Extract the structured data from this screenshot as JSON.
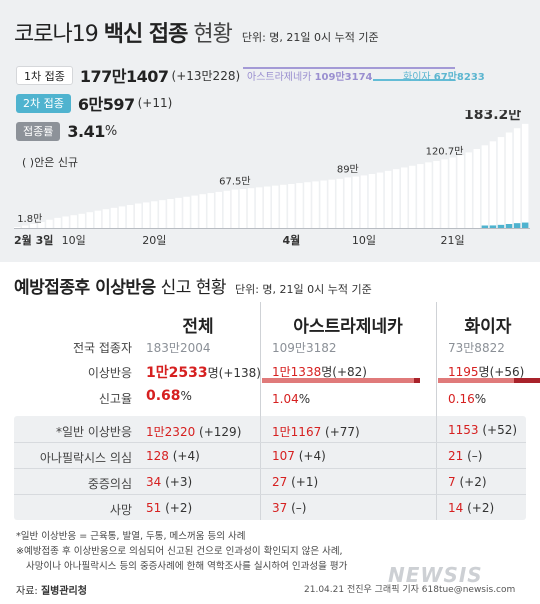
{
  "header": {
    "title_a": "코로나19",
    "title_b": "백신 접종",
    "title_c": "현황",
    "unit": "단위: 명, 21일 0시 누적 기준"
  },
  "stats": {
    "dose1_label": "1차 접종",
    "dose1_value": "177만1407",
    "dose1_new": "(+13만228)",
    "dose2_label": "2차 접종",
    "dose2_value": "6만597",
    "dose2_new": "(+11)",
    "rate_label": "접종률",
    "rate_value": "3.41",
    "rate_unit": "%",
    "paren_note": "( )안은 신규"
  },
  "vaccine_split": {
    "az_label": "아스트라제네카",
    "az_value": "109만3174",
    "pf_label": "화이자",
    "pf_value": "67만8233"
  },
  "chart_data": {
    "type": "bar",
    "title": "코로나19 백신 접종 현황",
    "series": [
      {
        "name": "1차 접종",
        "unit": "만명",
        "values": [
          1.8,
          4.3,
          7.2,
          10.5,
          14.5,
          17.8,
          20.3,
          22.5,
          25.0,
          27.8,
          30.5,
          33.0,
          35.5,
          38.0,
          40.5,
          43.0,
          45.0,
          47.0,
          49.0,
          51.0,
          53.0,
          55.0,
          57.0,
          59.5,
          61.5,
          63.5,
          65.5,
          67.5,
          68.5,
          70.0,
          71.5,
          73.0,
          74.5,
          76.0,
          77.5,
          79.0,
          80.5,
          82.0,
          83.5,
          85.0,
          86.5,
          89.0,
          90.5,
          92.5,
          95.0,
          97.5,
          100.5,
          103.5,
          106.5,
          109.5,
          112.5,
          115.5,
          118.0,
          120.7,
          124.0,
          128.0,
          133.0,
          139.0,
          145.5,
          152.5,
          160.0,
          168.0,
          175.5,
          183.2
        ]
      },
      {
        "name": "2차 접종",
        "unit": "만명",
        "values": [
          0,
          0,
          0,
          0,
          0,
          0,
          0,
          0,
          0,
          0,
          0,
          0,
          0,
          0,
          0,
          0,
          0,
          0,
          0,
          0,
          0,
          0,
          0,
          0,
          0,
          0,
          0,
          0,
          0,
          0,
          0,
          0,
          0,
          0,
          0,
          0,
          0,
          0,
          0,
          0,
          0,
          0,
          0,
          0,
          0,
          0,
          0,
          0,
          0,
          0,
          0,
          0,
          0,
          0,
          0,
          0,
          0,
          0,
          0.3,
          1.0,
          2.0,
          3.5,
          5.0,
          6.06
        ]
      }
    ],
    "data_labels": [
      {
        "index": 0,
        "text": "1.8만"
      },
      {
        "index": 27,
        "text": "67.5만"
      },
      {
        "index": 41,
        "text": "89만"
      },
      {
        "index": 53,
        "text": "120.7만"
      },
      {
        "index": 63,
        "text": "183.2만"
      }
    ],
    "x_ticks": [
      {
        "index": 0,
        "text": "2월 3일",
        "bold": true
      },
      {
        "index": 7,
        "text": "10일",
        "bold": false
      },
      {
        "index": 17,
        "text": "20일",
        "bold": false
      },
      {
        "index": 34,
        "text": "4월",
        "bold": true
      },
      {
        "index": 43,
        "text": "10일",
        "bold": false
      },
      {
        "index": 54,
        "text": "21일",
        "bold": false
      }
    ],
    "ylim": [
      0,
      190
    ],
    "colors": {
      "dose1": "#ffffff",
      "dose2": "#4fb3cf"
    }
  },
  "section2": {
    "title_a": "예방접종후 이상반응",
    "title_b": "신고 현황",
    "unit": "단위: 명, 21일 0시 누적 기준",
    "columns": [
      "전체",
      "아스트라제네카",
      "화이자"
    ],
    "rows": {
      "vaccinated": {
        "label": "전국 접종자",
        "total": "183만2004",
        "az": "109만3182",
        "pf": "73만8822"
      },
      "adverse": {
        "label": "이상반응",
        "total_num": "1만2533",
        "total_unit": "명",
        "total_new": "(+138)",
        "az_num": "1만1338",
        "az_unit": "명",
        "az_new": "(+82)",
        "pf_num": "1195",
        "pf_unit": "명",
        "pf_new": "(+56)"
      },
      "report_rate": {
        "label": "신고율",
        "total": "0.68",
        "az": "1.04",
        "pf": "0.16",
        "unit": "%"
      },
      "general": {
        "label": "*일반 이상반응",
        "total": "1만2320",
        "total_new": "(+129)",
        "az": "1만1167",
        "az_new": "(+77)",
        "pf": "1153",
        "pf_new": "(+52)"
      },
      "anaphylaxis": {
        "label": "아나필락시스 의심",
        "total": "128",
        "total_new": "(+4)",
        "az": "107",
        "az_new": "(+4)",
        "pf": "21",
        "pf_new": "(–)"
      },
      "severe": {
        "label": "중증의심",
        "total": "34",
        "total_new": "(+3)",
        "az": "27",
        "az_new": "(+1)",
        "pf": "7",
        "pf_new": "(+2)"
      },
      "death": {
        "label": "사망",
        "total": "51",
        "total_new": "(+2)",
        "az": "37",
        "az_new": "(–)",
        "pf": "14",
        "pf_new": "(+2)"
      }
    }
  },
  "footnotes": {
    "line1": "*일반 이상반응 = 근육통, 발열, 두통, 메스꺼움 등의 사례",
    "line2": "※예방접종 후 이상반응으로 의심되어 신고된 건으로 인과성이 확인되지 않은 사례,",
    "line3": "사망이나 아나필락시스 등의 중증사례에 한해 역학조사를 실시하여 인과성을 평가",
    "source_prefix": "자료: ",
    "source": "질병관리청",
    "credit": "21.04.21  전진우 그래픽 기자  618tue@newsis.com",
    "watermark": "NEWSIS"
  },
  "colors": {
    "accent_blue": "#4fb3cf",
    "accent_purple": "#a39ad6",
    "highlight_red": "#d62020",
    "bar_light_red": "#e07a7a",
    "bar_dark_red": "#a8222a"
  }
}
